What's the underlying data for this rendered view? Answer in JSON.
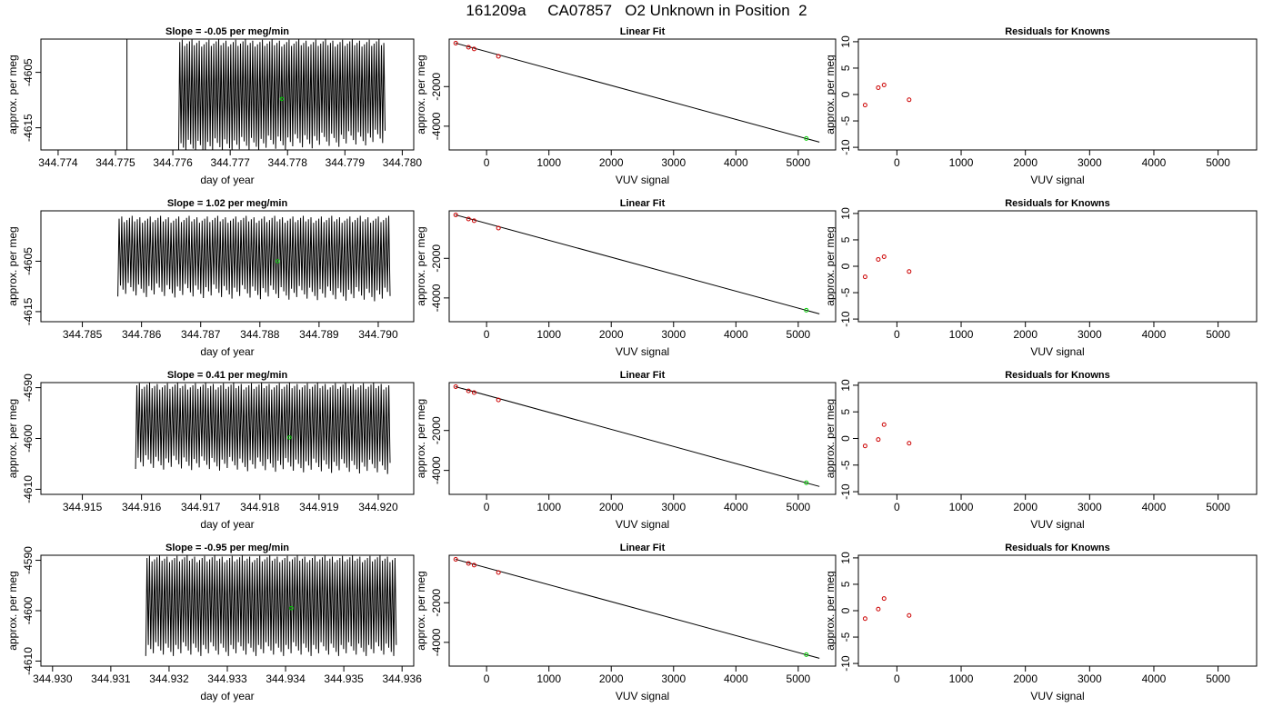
{
  "page": {
    "title": "161209a     CA07857   O2 Unknown in Position  2"
  },
  "colors": {
    "trace": "#000000",
    "unknown_point": "#00cc00",
    "known_point": "#cc0000",
    "axis": "#000000"
  },
  "chart_data": [
    {
      "id": "r1-trace",
      "type": "line",
      "title": "Slope =  -0.05  per meg/min",
      "xlabel": "day of year",
      "ylabel": "approx. per meg",
      "xlim": [
        344.7737,
        344.7802
      ],
      "ylim": [
        -4619,
        -4599
      ],
      "xticks": [
        344.774,
        344.775,
        344.776,
        344.777,
        344.778,
        344.779,
        344.78
      ],
      "xtick_labels": [
        "344.774",
        "344.775",
        "344.776",
        "344.777",
        "344.778",
        "344.779",
        "344.780"
      ],
      "yticks": [
        -4605,
        -4615
      ],
      "ytick_labels": [
        "-4605",
        "-4615"
      ],
      "trace": {
        "x_start": 344.7761,
        "x_end": 344.7797,
        "cycles": 85,
        "low_start": -4620,
        "low_end": -4618,
        "high": -4599,
        "spike_x": 344.7752,
        "spike_high": -4599,
        "spike_low": -4620
      },
      "unknown_point": {
        "x": 344.7779,
        "y": -4609.8
      }
    },
    {
      "id": "r1-fit",
      "type": "scatter",
      "title": "Linear Fit",
      "xlabel": "VUV signal",
      "ylabel": "approx. per meg",
      "xlim": [
        -600,
        5600
      ],
      "ylim": [
        -5200,
        400
      ],
      "xticks": [
        0,
        1000,
        2000,
        3000,
        4000,
        5000
      ],
      "xtick_labels": [
        "0",
        "1000",
        "2000",
        "3000",
        "4000",
        "5000"
      ],
      "yticks": [
        -2000,
        -4000
      ],
      "ytick_labels": [
        "-2000",
        "-4000"
      ],
      "known_points": [
        {
          "x": -495,
          "y": 194
        },
        {
          "x": -290,
          "y": -14
        },
        {
          "x": -200,
          "y": -99
        },
        {
          "x": 190,
          "y": -470
        }
      ],
      "unknown_point": {
        "x": 5130,
        "y": -4620
      },
      "fit_line": {
        "x": [
          -500,
          5340
        ],
        "y": [
          196,
          -4805
        ]
      }
    },
    {
      "id": "r1-resid",
      "type": "scatter",
      "title": "Residuals for Knowns",
      "xlabel": "VUV signal",
      "ylabel": "approx. per meg",
      "xlim": [
        -600,
        5600
      ],
      "ylim": [
        -10.5,
        10.5
      ],
      "xticks": [
        0,
        1000,
        2000,
        3000,
        4000,
        5000
      ],
      "xtick_labels": [
        "0",
        "1000",
        "2000",
        "3000",
        "4000",
        "5000"
      ],
      "yticks": [
        10,
        5,
        0,
        -5,
        -10
      ],
      "ytick_labels": [
        "10",
        "5",
        "0",
        "-5",
        "-10"
      ],
      "points": [
        {
          "x": -495,
          "y": -2.0
        },
        {
          "x": -290,
          "y": 1.3
        },
        {
          "x": -200,
          "y": 1.8
        },
        {
          "x": 190,
          "y": -1.0
        }
      ]
    },
    {
      "id": "r2-trace",
      "type": "line",
      "title": "Slope =  1.02  per meg/min",
      "xlabel": "day of year",
      "ylabel": "approx. per meg",
      "xlim": [
        344.7843,
        344.7906
      ],
      "ylim": [
        -4617,
        -4595
      ],
      "xticks": [
        344.785,
        344.786,
        344.787,
        344.788,
        344.789,
        344.79
      ],
      "xtick_labels": [
        "344.785",
        "344.786",
        "344.787",
        "344.788",
        "344.789",
        "344.790"
      ],
      "yticks": [
        -4605,
        -4615
      ],
      "ytick_labels": [
        "-4605",
        "-4615"
      ],
      "trace": {
        "x_start": 344.7856,
        "x_end": 344.7902,
        "cycles": 105,
        "low_start": -4612,
        "low_end": -4613,
        "high": -4596
      },
      "unknown_point": {
        "x": 344.7883,
        "y": -4605.0
      }
    },
    {
      "id": "r2-fit",
      "type": "scatter",
      "title": "Linear Fit",
      "xlabel": "VUV signal",
      "ylabel": "approx. per meg",
      "xlim": [
        -600,
        5600
      ],
      "ylim": [
        -5200,
        400
      ],
      "xticks": [
        0,
        1000,
        2000,
        3000,
        4000,
        5000
      ],
      "xtick_labels": [
        "0",
        "1000",
        "2000",
        "3000",
        "4000",
        "5000"
      ],
      "yticks": [
        -2000,
        -4000
      ],
      "ytick_labels": [
        "-2000",
        "-4000"
      ],
      "known_points": [
        {
          "x": -495,
          "y": 194
        },
        {
          "x": -290,
          "y": -14
        },
        {
          "x": -200,
          "y": -99
        },
        {
          "x": 190,
          "y": -470
        }
      ],
      "unknown_point": {
        "x": 5130,
        "y": -4620
      },
      "fit_line": {
        "x": [
          -500,
          5340
        ],
        "y": [
          196,
          -4805
        ]
      }
    },
    {
      "id": "r2-resid",
      "type": "scatter",
      "title": "Residuals for Knowns",
      "xlabel": "VUV signal",
      "ylabel": "approx. per meg",
      "xlim": [
        -600,
        5600
      ],
      "ylim": [
        -10.5,
        10.5
      ],
      "xticks": [
        0,
        1000,
        2000,
        3000,
        4000,
        5000
      ],
      "xtick_labels": [
        "0",
        "1000",
        "2000",
        "3000",
        "4000",
        "5000"
      ],
      "yticks": [
        10,
        5,
        0,
        -5,
        -10
      ],
      "ytick_labels": [
        "10",
        "5",
        "0",
        "-5",
        "-10"
      ],
      "points": [
        {
          "x": -495,
          "y": -2.0
        },
        {
          "x": -290,
          "y": 1.3
        },
        {
          "x": -200,
          "y": 1.8
        },
        {
          "x": 190,
          "y": -1.0
        }
      ]
    },
    {
      "id": "r3-trace",
      "type": "line",
      "title": "Slope =  0.41  per meg/min",
      "xlabel": "day of year",
      "ylabel": "approx. per meg",
      "xlim": [
        344.9143,
        344.9206
      ],
      "ylim": [
        -4611,
        -4589
      ],
      "xticks": [
        344.915,
        344.916,
        344.917,
        344.918,
        344.919,
        344.92
      ],
      "xtick_labels": [
        "344.915",
        "344.916",
        "344.917",
        "344.918",
        "344.919",
        "344.920"
      ],
      "yticks": [
        -4590,
        -4600,
        -4610
      ],
      "ytick_labels": [
        "-4590",
        "-4600",
        "-4610"
      ],
      "trace": {
        "x_start": 344.9159,
        "x_end": 344.9202,
        "cycles": 100,
        "low_start": -4606,
        "low_end": -4607,
        "high": -4589
      },
      "unknown_point": {
        "x": 344.9185,
        "y": -4599.8
      }
    },
    {
      "id": "r3-fit",
      "type": "scatter",
      "title": "Linear Fit",
      "xlabel": "VUV signal",
      "ylabel": "approx. per meg",
      "xlim": [
        -600,
        5600
      ],
      "ylim": [
        -5200,
        400
      ],
      "xticks": [
        0,
        1000,
        2000,
        3000,
        4000,
        5000
      ],
      "xtick_labels": [
        "0",
        "1000",
        "2000",
        "3000",
        "4000",
        "5000"
      ],
      "yticks": [
        -2000,
        -4000
      ],
      "ytick_labels": [
        "-2000",
        "-4000"
      ],
      "known_points": [
        {
          "x": -495,
          "y": 194
        },
        {
          "x": -290,
          "y": -14
        },
        {
          "x": -200,
          "y": -99
        },
        {
          "x": 190,
          "y": -470
        }
      ],
      "unknown_point": {
        "x": 5130,
        "y": -4620
      },
      "fit_line": {
        "x": [
          -500,
          5340
        ],
        "y": [
          196,
          -4805
        ]
      }
    },
    {
      "id": "r3-resid",
      "type": "scatter",
      "title": "Residuals for Knowns",
      "xlabel": "VUV signal",
      "ylabel": "approx. per meg",
      "xlim": [
        -600,
        5600
      ],
      "ylim": [
        -10.5,
        10.5
      ],
      "xticks": [
        0,
        1000,
        2000,
        3000,
        4000,
        5000
      ],
      "xtick_labels": [
        "0",
        "1000",
        "2000",
        "3000",
        "4000",
        "5000"
      ],
      "yticks": [
        10,
        5,
        0,
        -5,
        -10
      ],
      "ytick_labels": [
        "10",
        "5",
        "0",
        "-5",
        "-10"
      ],
      "points": [
        {
          "x": -495,
          "y": -1.4
        },
        {
          "x": -290,
          "y": -0.2
        },
        {
          "x": -200,
          "y": 2.6
        },
        {
          "x": 190,
          "y": -0.9
        }
      ]
    },
    {
      "id": "r4-trace",
      "type": "line",
      "title": "Slope =  -0.95  per meg/min",
      "xlabel": "day of year",
      "ylabel": "approx. per meg",
      "xlim": [
        344.9298,
        344.9362
      ],
      "ylim": [
        -4611,
        -4589
      ],
      "xticks": [
        344.93,
        344.931,
        344.932,
        344.933,
        344.934,
        344.935,
        344.936
      ],
      "xtick_labels": [
        "344.930",
        "344.931",
        "344.932",
        "344.933",
        "344.934",
        "344.935",
        "344.936"
      ],
      "yticks": [
        -4590,
        -4600,
        -4610
      ],
      "ytick_labels": [
        "-4590",
        "-4600",
        "-4610"
      ],
      "trace": {
        "x_start": 344.9316,
        "x_end": 344.9359,
        "cycles": 100,
        "low_start": -4609,
        "low_end": -4609,
        "high": -4589
      },
      "unknown_point": {
        "x": 344.9341,
        "y": -4599.5
      }
    },
    {
      "id": "r4-fit",
      "type": "scatter",
      "title": "Linear Fit",
      "xlabel": "VUV signal",
      "ylabel": "approx. per meg",
      "xlim": [
        -600,
        5600
      ],
      "ylim": [
        -5200,
        400
      ],
      "xticks": [
        0,
        1000,
        2000,
        3000,
        4000,
        5000
      ],
      "xtick_labels": [
        "0",
        "1000",
        "2000",
        "3000",
        "4000",
        "5000"
      ],
      "yticks": [
        -2000,
        -4000
      ],
      "ytick_labels": [
        "-2000",
        "-4000"
      ],
      "known_points": [
        {
          "x": -495,
          "y": 194
        },
        {
          "x": -290,
          "y": -14
        },
        {
          "x": -200,
          "y": -99
        },
        {
          "x": 190,
          "y": -470
        }
      ],
      "unknown_point": {
        "x": 5130,
        "y": -4620
      },
      "fit_line": {
        "x": [
          -500,
          5340
        ],
        "y": [
          196,
          -4805
        ]
      }
    },
    {
      "id": "r4-resid",
      "type": "scatter",
      "title": "Residuals for Knowns",
      "xlabel": "VUV signal",
      "ylabel": "approx. per meg",
      "xlim": [
        -600,
        5600
      ],
      "ylim": [
        -10.5,
        10.5
      ],
      "xticks": [
        0,
        1000,
        2000,
        3000,
        4000,
        5000
      ],
      "xtick_labels": [
        "0",
        "1000",
        "2000",
        "3000",
        "4000",
        "5000"
      ],
      "yticks": [
        10,
        5,
        0,
        -5,
        -10
      ],
      "ytick_labels": [
        "10",
        "5",
        "0",
        "-5",
        "-10"
      ],
      "points": [
        {
          "x": -495,
          "y": -1.5
        },
        {
          "x": -290,
          "y": 0.3
        },
        {
          "x": -200,
          "y": 2.3
        },
        {
          "x": 190,
          "y": -0.9
        }
      ]
    }
  ]
}
